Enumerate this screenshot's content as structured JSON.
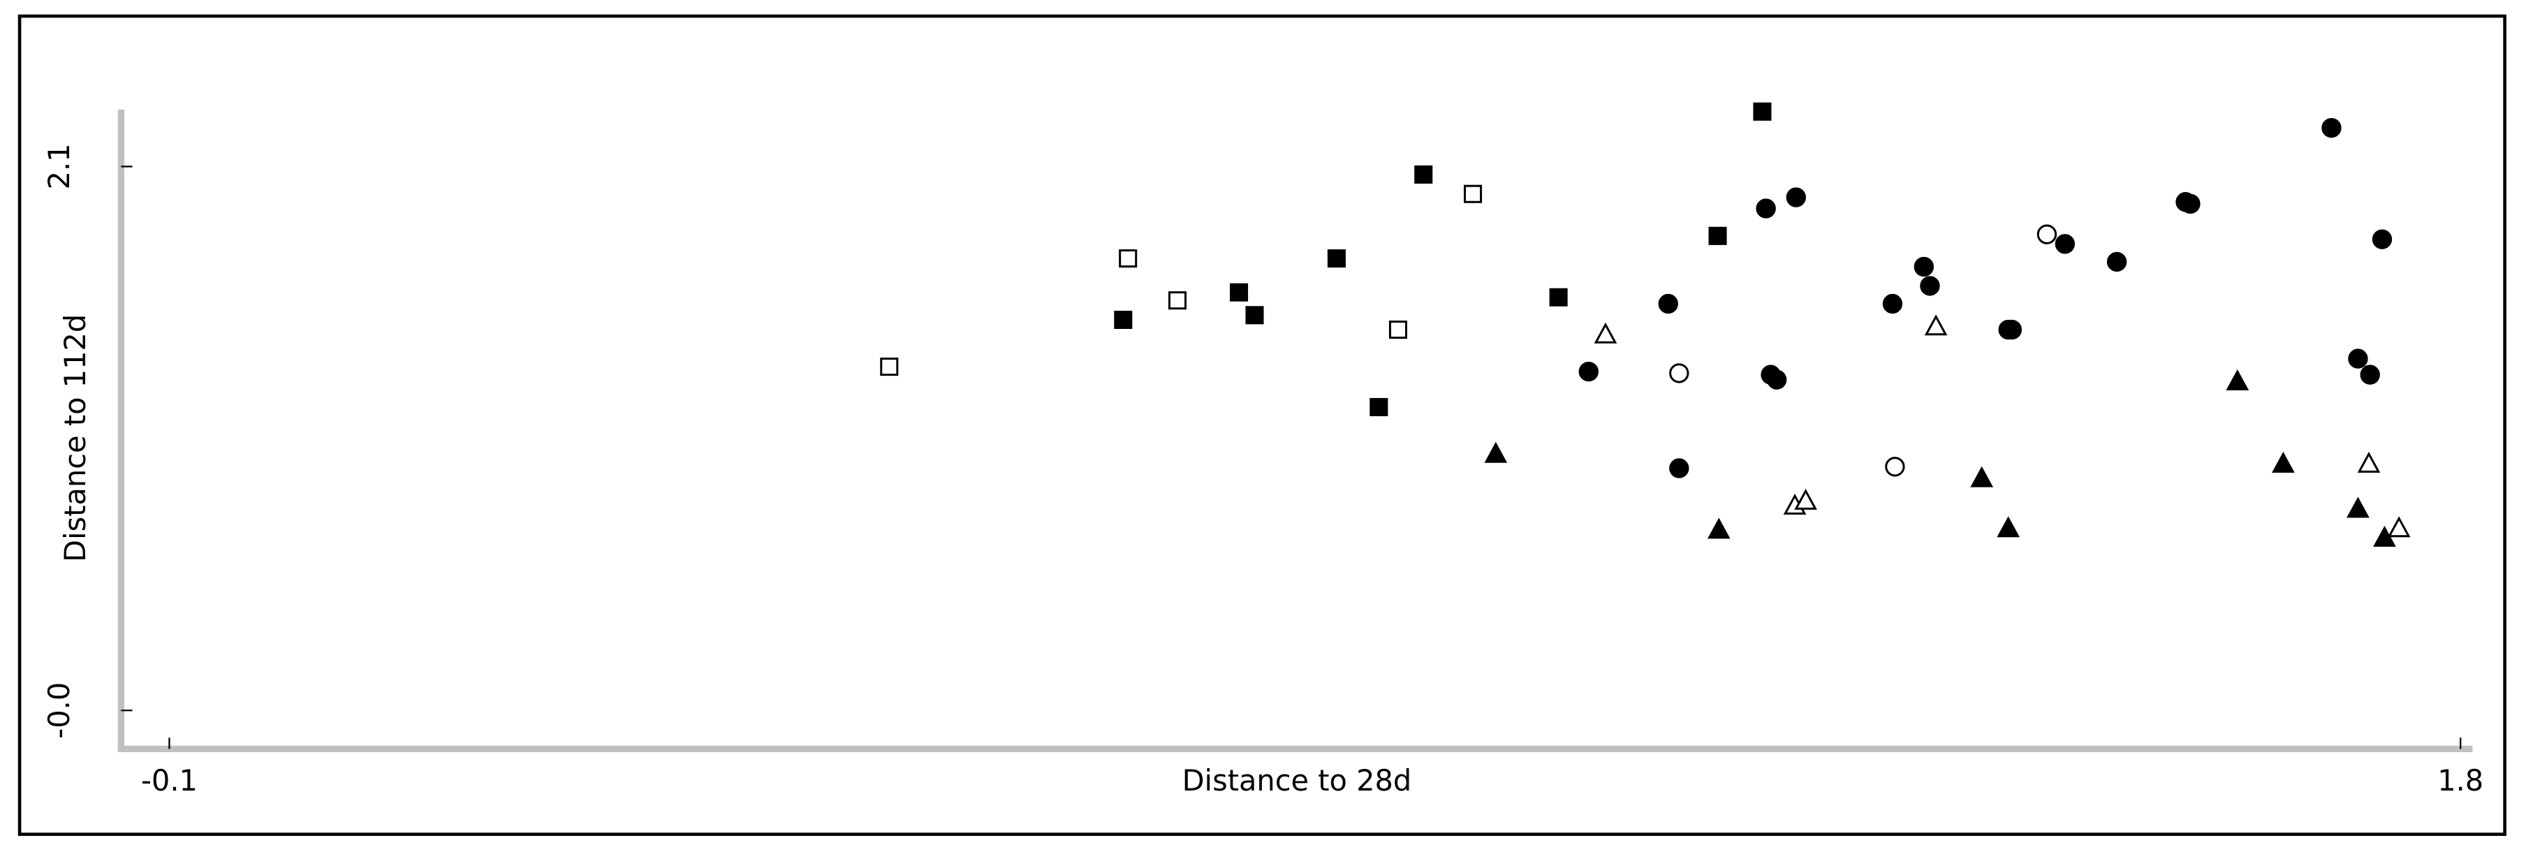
{
  "chart_data": {
    "type": "scatter",
    "x_label": "Distance to 28d",
    "y_label": "Distance to 112d",
    "xlim": [
      -0.14,
      1.81
    ],
    "ylim": [
      -0.13,
      2.32
    ],
    "xticks": [
      -0.1,
      1.8
    ],
    "yticks": [
      {
        "value": 0,
        "label": "-0.0"
      },
      2.1
    ],
    "series": [
      {
        "color": "#000000",
        "shape": "square",
        "filled": true,
        "x": [
          0.691,
          0.787,
          0.8,
          0.868,
          0.903,
          0.94,
          1.052,
          1.184,
          1.221
        ],
        "values": [
          1.508,
          1.614,
          1.526,
          1.745,
          1.171,
          2.069,
          1.595,
          1.832,
          2.312
        ]
      },
      {
        "color": "#000000",
        "shape": "square",
        "filled": false,
        "x": [
          0.497,
          0.695,
          0.736,
          0.919,
          0.981
        ],
        "values": [
          1.327,
          1.745,
          1.583,
          1.47,
          1.994
        ]
      },
      {
        "color": "#000000",
        "shape": "circle",
        "filled": true,
        "x": [
          1.077,
          1.143,
          1.152,
          1.224,
          1.228,
          1.233,
          1.249,
          1.329,
          1.355,
          1.36,
          1.425,
          1.428,
          1.472,
          1.515,
          1.572,
          1.576,
          1.693,
          1.715,
          1.725,
          1.735
        ],
        "values": [
          1.308,
          1.57,
          0.935,
          1.938,
          1.296,
          1.277,
          1.981,
          1.57,
          1.713,
          1.639,
          1.47,
          1.47,
          1.801,
          1.732,
          1.963,
          1.956,
          2.249,
          1.358,
          1.296,
          1.819
        ]
      },
      {
        "color": "#000000",
        "shape": "circle",
        "filled": false,
        "x": [
          1.152,
          1.331,
          1.457
        ],
        "values": [
          1.302,
          0.941,
          1.838
        ]
      },
      {
        "color": "#000000",
        "shape": "triangle",
        "filled": true,
        "x": [
          1.0,
          1.185,
          1.403,
          1.425,
          1.615,
          1.653,
          1.715,
          1.737
        ],
        "values": [
          0.991,
          0.698,
          0.897,
          0.704,
          1.271,
          0.953,
          0.779,
          0.667
        ]
      },
      {
        "color": "#000000",
        "shape": "triangle",
        "filled": false,
        "x": [
          1.091,
          1.248,
          1.257,
          1.365,
          1.724,
          1.749
        ],
        "values": [
          1.452,
          0.791,
          0.81,
          1.483,
          0.953,
          0.704
        ]
      }
    ]
  }
}
